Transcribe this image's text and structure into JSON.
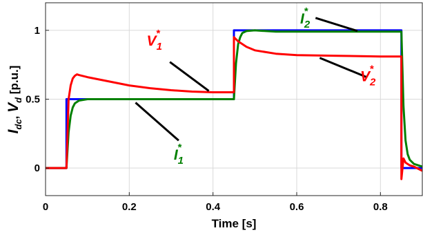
{
  "chart_data": {
    "type": "line",
    "title": "",
    "xlabel": "Time [s]",
    "ylabel_parts": {
      "I": "I",
      "dc": "dc",
      "sep": ", ",
      "V": "V",
      "d": "d",
      "unit": " [p.u.]"
    },
    "xlim": [
      0,
      0.9
    ],
    "ylim": [
      -0.2,
      1.2
    ],
    "xticks": [
      0,
      0.2,
      0.4,
      0.6,
      0.8
    ],
    "xtick_labels": [
      "0",
      "0.2",
      "0.4",
      "0.6",
      "0.8"
    ],
    "yticks": [
      0,
      0.5,
      1
    ],
    "ytick_labels": [
      "0",
      "0.5",
      "1"
    ],
    "grid": true,
    "series": [
      {
        "color": "#0000ff",
        "x": [
          0,
          0.05,
          0.05,
          0.45,
          0.45,
          0.85,
          0.85,
          0.9
        ],
        "y": [
          0,
          0,
          0.5,
          0.5,
          1.0,
          1.0,
          0,
          0
        ]
      },
      {
        "color": "#008000",
        "x": [
          0,
          0.05,
          0.055,
          0.06,
          0.065,
          0.07,
          0.08,
          0.09,
          0.1,
          0.12,
          0.15,
          0.2,
          0.3,
          0.4,
          0.45,
          0.455,
          0.46,
          0.465,
          0.47,
          0.48,
          0.5,
          0.55,
          0.6,
          0.7,
          0.8,
          0.85,
          0.855,
          0.86,
          0.865,
          0.87,
          0.88,
          0.9
        ],
        "y": [
          0,
          0,
          0.26,
          0.38,
          0.44,
          0.47,
          0.49,
          0.495,
          0.5,
          0.5,
          0.5,
          0.5,
          0.5,
          0.5,
          0.5,
          0.76,
          0.9,
          0.95,
          0.98,
          0.995,
          1.0,
          0.99,
          0.99,
          0.99,
          0.99,
          0.99,
          0.45,
          0.2,
          0.1,
          0.06,
          0.03,
          0.01
        ]
      },
      {
        "color": "#ff0000",
        "x": [
          0,
          0.05,
          0.055,
          0.06,
          0.065,
          0.07,
          0.075,
          0.08,
          0.1,
          0.15,
          0.2,
          0.25,
          0.3,
          0.35,
          0.4,
          0.45,
          0.45,
          0.46,
          0.48,
          0.5,
          0.55,
          0.6,
          0.7,
          0.8,
          0.85,
          0.85,
          0.855,
          0.86,
          0.87,
          0.88,
          0.9
        ],
        "y": [
          0,
          0,
          0.5,
          0.6,
          0.65,
          0.67,
          0.68,
          0.675,
          0.66,
          0.63,
          0.6,
          0.58,
          0.565,
          0.555,
          0.55,
          0.55,
          0.95,
          0.92,
          0.88,
          0.855,
          0.83,
          0.82,
          0.815,
          0.81,
          0.81,
          -0.08,
          0.07,
          0.04,
          0.02,
          0.01,
          -0.02
        ]
      }
    ],
    "annotations": [
      {
        "key": "V1",
        "letter": "V",
        "sub": "1",
        "sup": "*",
        "color": "#ff0000",
        "text_at": [
          0.26,
          0.89
        ],
        "arrow_from": [
          0.297,
          0.77
        ],
        "arrow_to": [
          0.39,
          0.56
        ]
      },
      {
        "key": "I1",
        "letter": "I",
        "sub": "1",
        "sup": "*",
        "color": "#008000",
        "text_at": [
          0.318,
          0.06
        ],
        "arrow_from": [
          0.318,
          0.2
        ],
        "arrow_to": [
          0.215,
          0.475
        ]
      },
      {
        "key": "I2",
        "letter": "I",
        "sub": "2",
        "sup": "*",
        "color": "#008000",
        "text_at": [
          0.62,
          1.05
        ],
        "arrow_from": [
          0.645,
          1.09
        ],
        "arrow_to": [
          0.745,
          0.995
        ]
      },
      {
        "key": "V2",
        "letter": "V",
        "sub": "2",
        "sup": "*",
        "color": "#ff0000",
        "text_at": [
          0.77,
          0.63
        ],
        "arrow_from": [
          0.767,
          0.66
        ],
        "arrow_to": [
          0.655,
          0.8
        ]
      }
    ]
  }
}
